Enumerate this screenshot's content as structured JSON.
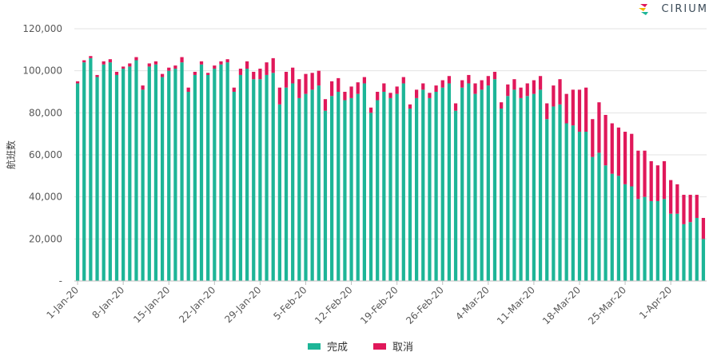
{
  "logo": {
    "text": "CIRIUM"
  },
  "chart_data": {
    "type": "bar",
    "stacked": true,
    "title": "",
    "xlabel": "",
    "ylabel": "航班数",
    "ylim": [
      0,
      120000
    ],
    "yticks": [
      0,
      20000,
      40000,
      60000,
      80000,
      100000,
      120000
    ],
    "ytick_labels": [
      "-",
      "20,000",
      "40,000",
      "60,000",
      "80,000",
      "100,000",
      "120,000"
    ],
    "xtick_labels": [
      "1-Jan-20",
      "8-Jan-20",
      "15-Jan-20",
      "22-Jan-20",
      "29-Jan-20",
      "5-Feb-20",
      "12-Feb-20",
      "19-Feb-20",
      "26-Feb-20",
      "4-Mar-20",
      "11-Mar-20",
      "18-Mar-20",
      "25-Mar-20",
      "1-Apr-20"
    ],
    "xtick_every": 7,
    "legend_position": "bottom",
    "colors": {
      "completed": "#1db597",
      "cancelled": "#e0185a"
    },
    "series": [
      {
        "name": "完成",
        "values": [
          94000,
          104000,
          106000,
          97000,
          103000,
          104000,
          98000,
          101000,
          102000,
          105000,
          91000,
          102000,
          103000,
          97000,
          100000,
          101000,
          104000,
          90000,
          98000,
          103000,
          98000,
          101000,
          103000,
          104000,
          90000,
          98000,
          101000,
          96000,
          96000,
          98000,
          99000,
          84000,
          92000,
          94000,
          87000,
          89000,
          91000,
          93000,
          81000,
          88000,
          90000,
          86000,
          87000,
          89000,
          94000,
          80000,
          86000,
          90000,
          87000,
          89000,
          94000,
          82000,
          87000,
          91000,
          87000,
          90000,
          92000,
          94000,
          81000,
          92000,
          94000,
          89000,
          91000,
          93000,
          96000,
          82000,
          88000,
          91000,
          87000,
          88000,
          89000,
          91000,
          77000,
          83000,
          84000,
          75000,
          74000,
          71000,
          71000,
          59000,
          61000,
          55000,
          51000,
          50000,
          46000,
          45000,
          39000,
          40000,
          38000,
          38000,
          39000,
          32000,
          32000,
          27000,
          28000,
          30000,
          20000
        ]
      },
      {
        "name": "取消",
        "values": [
          1000,
          1000,
          1000,
          1000,
          1500,
          1500,
          1500,
          1000,
          1500,
          1500,
          2000,
          1500,
          1500,
          1500,
          1500,
          1500,
          2500,
          2000,
          1500,
          1500,
          1000,
          1500,
          1500,
          1500,
          2000,
          3000,
          3500,
          3500,
          5000,
          6000,
          7000,
          8000,
          7500,
          7500,
          9000,
          9500,
          8000,
          7000,
          5500,
          7000,
          6500,
          4000,
          5500,
          5500,
          3000,
          2500,
          4000,
          4000,
          2500,
          3500,
          3000,
          2000,
          4000,
          3000,
          2500,
          3000,
          3500,
          3500,
          3500,
          3500,
          4000,
          5000,
          4500,
          4500,
          3500,
          3000,
          5500,
          5000,
          5000,
          6000,
          6500,
          6500,
          7500,
          10000,
          12000,
          14000,
          17000,
          20000,
          21000,
          18000,
          24000,
          24000,
          24000,
          23000,
          25000,
          25000,
          23000,
          22000,
          19000,
          17000,
          18000,
          16000,
          14000,
          14000,
          13000,
          11000,
          10000
        ]
      }
    ]
  }
}
